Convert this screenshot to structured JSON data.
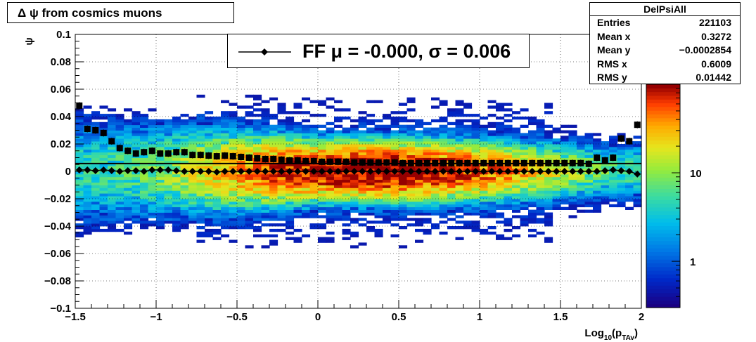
{
  "title": "Δ ψ from cosmics muons",
  "stats_box": {
    "name": "DelPsiAll",
    "rows": [
      {
        "label": "Entries",
        "value": "221103"
      },
      {
        "label": "Mean x",
        "value": "0.3272"
      },
      {
        "label": "Mean y",
        "value": "−0.0002854"
      },
      {
        "label": "RMS x",
        "value": "0.6009"
      },
      {
        "label": "RMS y",
        "value": "0.01442"
      }
    ]
  },
  "legend": {
    "entry": "FF μ = -0.000, σ =   0.006"
  },
  "chart_data": {
    "type": "heatmap",
    "title": "Δ ψ from cosmics muons",
    "xlabel": "Log10(pTAv)",
    "ylabel": "ψ",
    "xlim": [
      -1.5,
      2
    ],
    "ylim": [
      -0.1,
      0.1
    ],
    "x_ticks": [
      "−1.5",
      "−1",
      "−0.5",
      "0",
      "0.5",
      "1",
      "1.5",
      "2"
    ],
    "y_ticks": [
      "−0.1",
      "−0.08",
      "−0.06",
      "−0.04",
      "−0.02",
      "0",
      "0.02",
      "0.04",
      "0.06",
      "0.08",
      "0.1"
    ],
    "color_scale": {
      "type": "log",
      "ticks": [
        "1",
        "10"
      ],
      "range": [
        0.3,
        100
      ]
    },
    "grid": true,
    "horizontal_line_y": 0.0057,
    "series": [
      {
        "name": "sigma",
        "marker": "square",
        "x": [
          -1.475,
          -1.425,
          -1.375,
          -1.325,
          -1.275,
          -1.225,
          -1.175,
          -1.125,
          -1.075,
          -1.025,
          -0.975,
          -0.925,
          -0.875,
          -0.825,
          -0.775,
          -0.725,
          -0.675,
          -0.625,
          -0.575,
          -0.525,
          -0.475,
          -0.425,
          -0.375,
          -0.325,
          -0.275,
          -0.225,
          -0.175,
          -0.125,
          -0.075,
          -0.025,
          0.025,
          0.075,
          0.125,
          0.175,
          0.225,
          0.275,
          0.325,
          0.375,
          0.425,
          0.475,
          0.525,
          0.575,
          0.625,
          0.675,
          0.725,
          0.775,
          0.825,
          0.875,
          0.925,
          0.975,
          1.025,
          1.075,
          1.125,
          1.175,
          1.225,
          1.275,
          1.325,
          1.375,
          1.425,
          1.475,
          1.525,
          1.575,
          1.625,
          1.675,
          1.725,
          1.775,
          1.825,
          1.875,
          1.925,
          1.975
        ],
        "y": [
          0.048,
          0.031,
          0.03,
          0.028,
          0.022,
          0.017,
          0.015,
          0.013,
          0.014,
          0.015,
          0.013,
          0.013,
          0.014,
          0.014,
          0.012,
          0.012,
          0.0115,
          0.011,
          0.0115,
          0.011,
          0.0105,
          0.01,
          0.0095,
          0.009,
          0.009,
          0.0085,
          0.008,
          0.008,
          0.0075,
          0.0075,
          0.007,
          0.007,
          0.007,
          0.007,
          0.0065,
          0.0065,
          0.0065,
          0.0065,
          0.0065,
          0.0065,
          0.006,
          0.006,
          0.006,
          0.006,
          0.006,
          0.006,
          0.006,
          0.006,
          0.006,
          0.006,
          0.006,
          0.006,
          0.006,
          0.006,
          0.006,
          0.006,
          0.006,
          0.006,
          0.006,
          0.006,
          0.006,
          0.006,
          0.006,
          0.0055,
          0.01,
          0.008,
          0.01,
          0.024,
          0.022,
          0.034
        ]
      },
      {
        "name": "mu",
        "marker": "diamond",
        "x": [
          -1.475,
          -1.425,
          -1.375,
          -1.325,
          -1.275,
          -1.225,
          -1.175,
          -1.125,
          -1.075,
          -1.025,
          -0.975,
          -0.925,
          -0.875,
          -0.825,
          -0.775,
          -0.725,
          -0.675,
          -0.625,
          -0.575,
          -0.525,
          -0.475,
          -0.425,
          -0.375,
          -0.325,
          -0.275,
          -0.225,
          -0.175,
          -0.125,
          -0.075,
          -0.025,
          0.025,
          0.075,
          0.125,
          0.175,
          0.225,
          0.275,
          0.325,
          0.375,
          0.425,
          0.475,
          0.525,
          0.575,
          0.625,
          0.675,
          0.725,
          0.775,
          0.825,
          0.875,
          0.925,
          0.975,
          1.025,
          1.075,
          1.125,
          1.175,
          1.225,
          1.275,
          1.325,
          1.375,
          1.425,
          1.475,
          1.525,
          1.575,
          1.625,
          1.675,
          1.725,
          1.775,
          1.825,
          1.875,
          1.925,
          1.975
        ],
        "y": [
          0.001,
          0.001,
          0.0005,
          0.001,
          0.0005,
          0.0,
          0.0005,
          0.0005,
          0.0,
          0.001,
          0.001,
          0.001,
          0.0005,
          0.0,
          0.0,
          0.0,
          0.0,
          -0.0005,
          0.0,
          0.0,
          0.0,
          0.0,
          0.0,
          0.0,
          0.0,
          0.0,
          0.0,
          0.0,
          0.0,
          0.0,
          0.0,
          0.0,
          0.0,
          0.0,
          0.0,
          0.0,
          0.0,
          0.0,
          0.0,
          0.0,
          0.0,
          0.0,
          0.0,
          0.0,
          0.0,
          0.0,
          0.0,
          0.0,
          0.0,
          0.0,
          0.0,
          0.0,
          0.0,
          0.0,
          0.0,
          0.0,
          0.0,
          0.0,
          0.0,
          0.0,
          0.0,
          0.0,
          0.0,
          0.0,
          0.0,
          0.0005,
          0.001,
          0.0005,
          0.0,
          -0.002
        ]
      }
    ]
  }
}
